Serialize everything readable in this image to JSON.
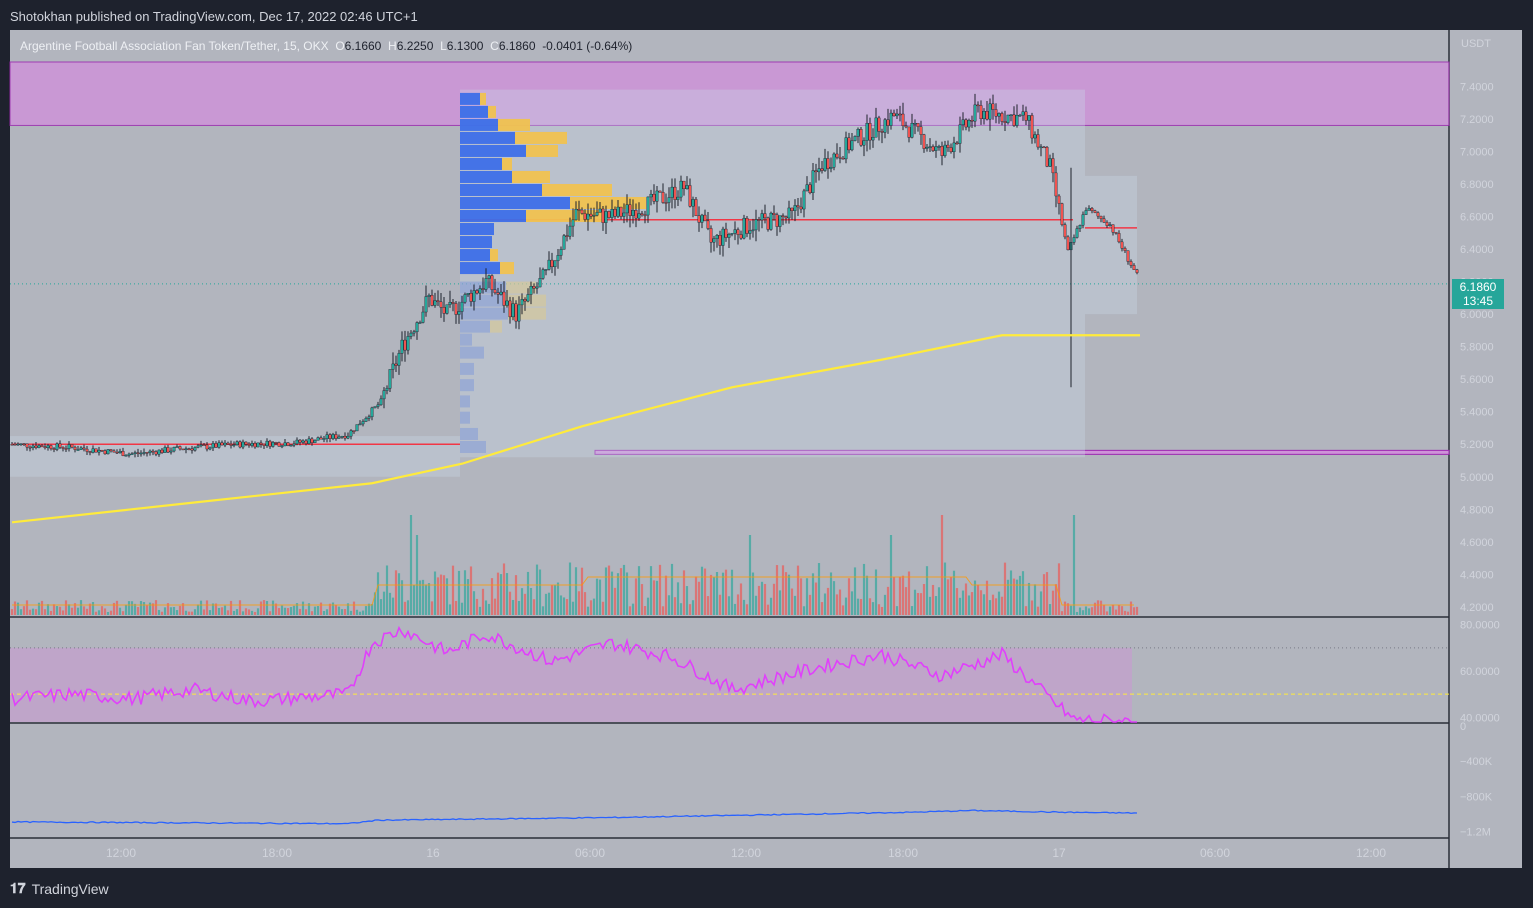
{
  "publisher_line": "Shotokhan published on TradingView.com, Dec 17, 2022 02:46 UTC+1",
  "footer": {
    "logo_glyph": "𝟏𝟕",
    "brand": "TradingView"
  },
  "legend": {
    "symbol": "Argentine Football Association Fan Token/Tether, 15, OKX",
    "open_label": "O",
    "open": "6.1660",
    "high_label": "H",
    "high": "6.2250",
    "low_label": "L",
    "low": "6.1300",
    "close_label": "C",
    "close": "6.1860",
    "change": "-0.0401 (-0.64%)"
  },
  "price_tag": {
    "price": "6.1860",
    "countdown": "13:45"
  },
  "colors": {
    "up": "#26a69a",
    "down": "#ef5350",
    "ma": "#ffeb3b",
    "rsi": "#e040fb",
    "obv": "#2962ff",
    "zone": "#ce93d8",
    "poc": "#f23645"
  },
  "chart_data": {
    "type": "candlestick",
    "currency": "USDT",
    "price_axis_ticks": [
      "7.4000",
      "7.2000",
      "7.0000",
      "6.8000",
      "6.6000",
      "6.4000",
      "6.2000",
      "6.0000",
      "5.8000",
      "5.6000",
      "5.4000",
      "5.2000",
      "5.0000",
      "4.8000",
      "4.6000",
      "4.4000",
      "4.2000"
    ],
    "time_axis_ticks": [
      "12:00",
      "18:00",
      "16",
      "06:00",
      "12:00",
      "18:00",
      "17",
      "06:00",
      "12:00"
    ],
    "rsi_axis_ticks": [
      "80.0000",
      "60.0000",
      "40.0000"
    ],
    "obv_axis_ticks": [
      "0",
      "−400K",
      "−800K",
      "−1.2M"
    ],
    "ylim": [
      4.15,
      7.55
    ],
    "rsi_ylim": [
      38,
      82
    ],
    "obv_ylim": [
      -1250000,
      0
    ],
    "resistance_zone": [
      7.16,
      7.55
    ],
    "support_level": 5.15,
    "poc_level": 6.58,
    "last_price": 6.186,
    "price_waypoints": [
      [
        0,
        5.2
      ],
      [
        20,
        5.18
      ],
      [
        40,
        5.14
      ],
      [
        55,
        5.17
      ],
      [
        75,
        5.2
      ],
      [
        95,
        5.21
      ],
      [
        112,
        5.26
      ],
      [
        123,
        5.46
      ],
      [
        130,
        5.8
      ],
      [
        139,
        6.1
      ],
      [
        145,
        6.0
      ],
      [
        158,
        6.2
      ],
      [
        168,
        6.0
      ],
      [
        178,
        6.24
      ],
      [
        188,
        6.62
      ],
      [
        200,
        6.6
      ],
      [
        213,
        6.68
      ],
      [
        224,
        6.78
      ],
      [
        233,
        6.44
      ],
      [
        246,
        6.55
      ],
      [
        260,
        6.6
      ],
      [
        270,
        6.92
      ],
      [
        282,
        7.08
      ],
      [
        294,
        7.22
      ],
      [
        310,
        6.98
      ],
      [
        322,
        7.25
      ],
      [
        338,
        7.2
      ],
      [
        346,
        6.9
      ],
      [
        352,
        6.38
      ],
      [
        358,
        6.65
      ],
      [
        366,
        6.55
      ],
      [
        376,
        6.2
      ]
    ],
    "ma_line": [
      [
        0,
        4.72
      ],
      [
        60,
        4.84
      ],
      [
        120,
        4.96
      ],
      [
        150,
        5.08
      ],
      [
        190,
        5.31
      ],
      [
        240,
        5.55
      ],
      [
        290,
        5.72
      ],
      [
        330,
        5.87
      ],
      [
        376,
        5.87
      ]
    ],
    "rsi_waypoints": [
      [
        0,
        48
      ],
      [
        20,
        50
      ],
      [
        40,
        48
      ],
      [
        60,
        52
      ],
      [
        80,
        47
      ],
      [
        112,
        50
      ],
      [
        120,
        72
      ],
      [
        130,
        78
      ],
      [
        145,
        68
      ],
      [
        158,
        76
      ],
      [
        180,
        64
      ],
      [
        200,
        72
      ],
      [
        220,
        66
      ],
      [
        240,
        52
      ],
      [
        270,
        62
      ],
      [
        290,
        67
      ],
      [
        310,
        58
      ],
      [
        330,
        67
      ],
      [
        346,
        48
      ],
      [
        354,
        39
      ],
      [
        376,
        38
      ]
    ],
    "obv_waypoints": [
      [
        0,
        -1090000
      ],
      [
        112,
        -1110000
      ],
      [
        122,
        -1070000
      ],
      [
        150,
        -1060000
      ],
      [
        200,
        -1040000
      ],
      [
        250,
        -1010000
      ],
      [
        300,
        -980000
      ],
      [
        320,
        -960000
      ],
      [
        350,
        -980000
      ],
      [
        376,
        -990000
      ]
    ]
  }
}
